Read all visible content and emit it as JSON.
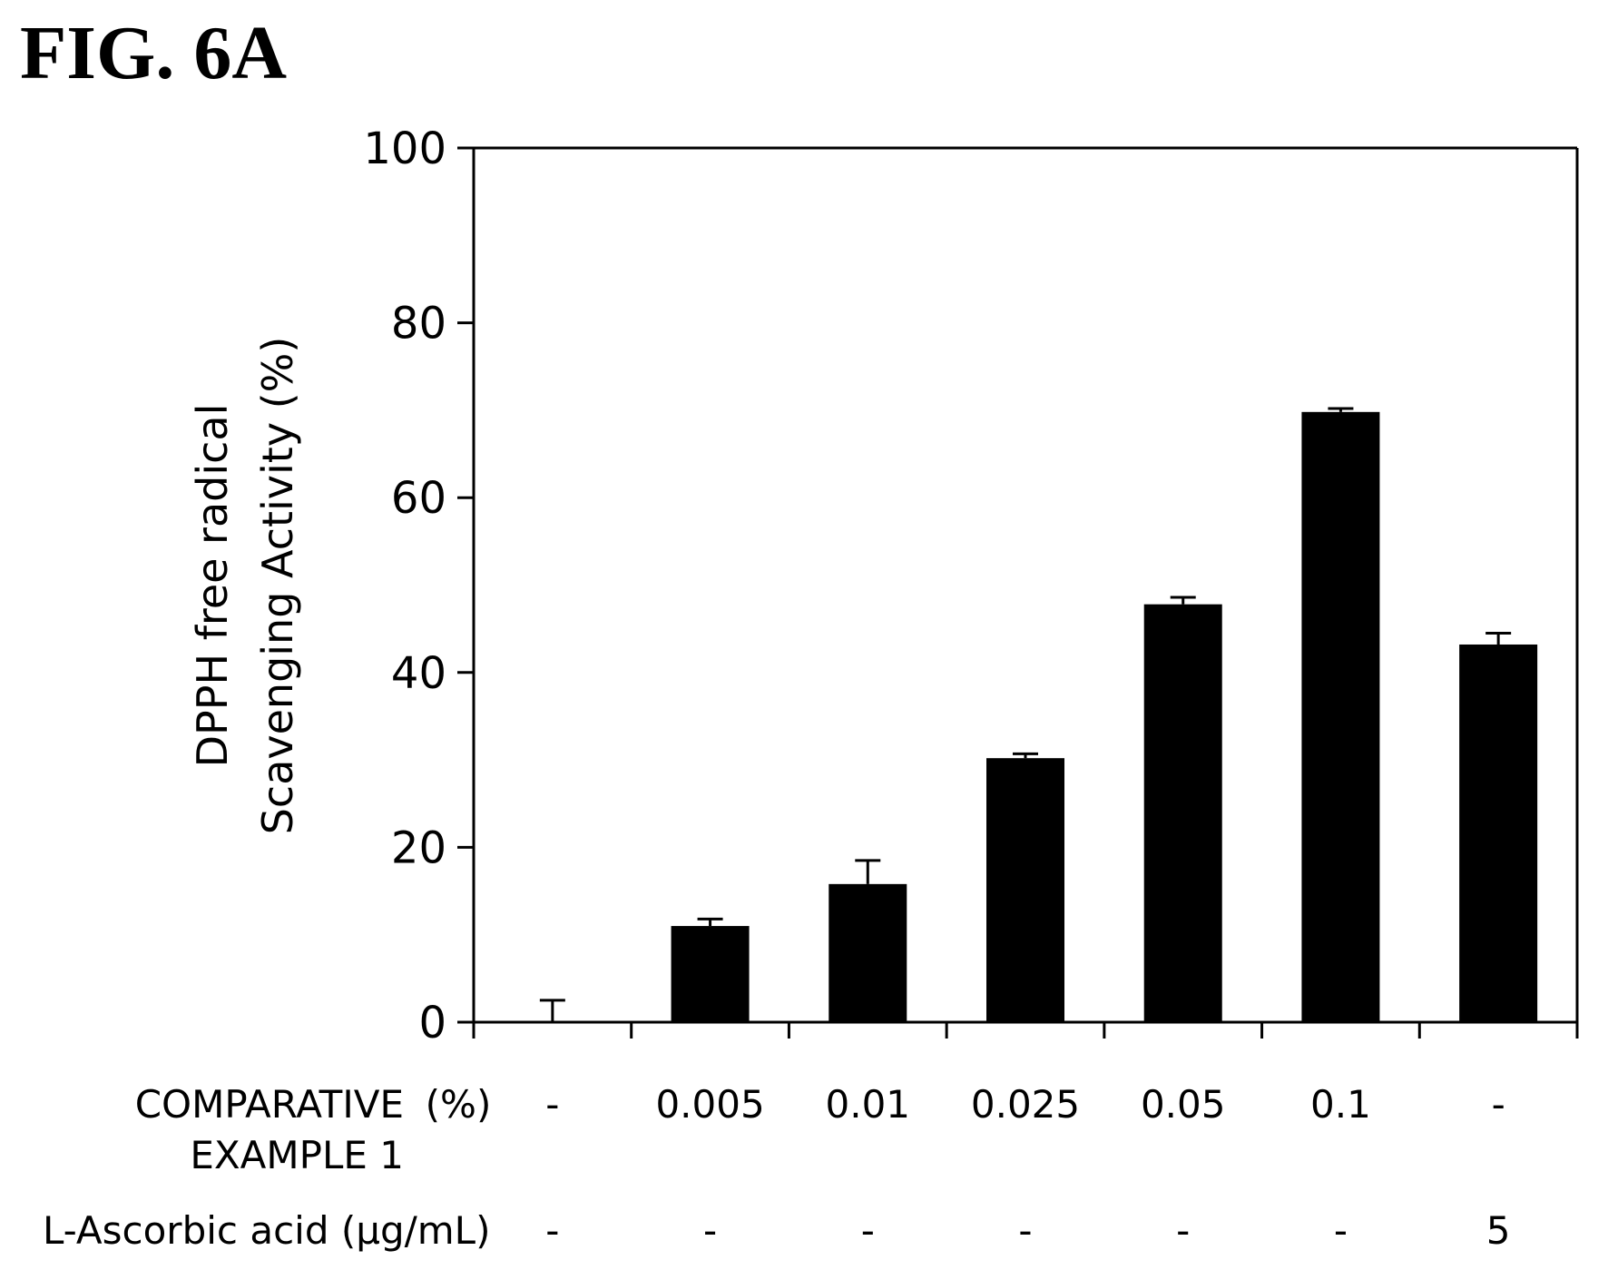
{
  "figure_title": "FIG. 6A",
  "chart_data": {
    "type": "bar",
    "ylabel_lines": [
      "DPPH free radical",
      "Scavenging Activity (%)"
    ],
    "ylim": [
      0,
      100
    ],
    "yticks": [
      0,
      20,
      40,
      60,
      80,
      100
    ],
    "values": [
      0,
      11,
      15.8,
      30.2,
      47.8,
      69.8,
      43.2
    ],
    "errors": [
      2.5,
      0.8,
      2.7,
      0.5,
      0.8,
      0.4,
      1.3
    ],
    "bar_color": "#000000",
    "rows": [
      {
        "label_lines": [
          "COMPARATIVE",
          "EXAMPLE 1"
        ],
        "unit": "(%)",
        "values": [
          "-",
          "0.005",
          "0.01",
          "0.025",
          "0.05",
          "0.1",
          "-"
        ]
      },
      {
        "label_lines": [
          "L-Ascorbic acid (μg/mL)"
        ],
        "unit": "",
        "values": [
          "-",
          "-",
          "-",
          "-",
          "-",
          "-",
          "5"
        ]
      }
    ]
  }
}
